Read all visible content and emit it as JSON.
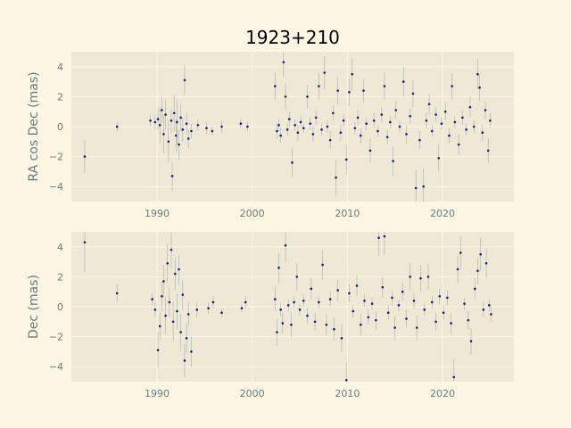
{
  "title": "1923+210",
  "chart_data": [
    {
      "type": "scatter",
      "ylabel": "RA cos Dec (mas)",
      "xlim": [
        1981.0,
        2027.5
      ],
      "ylim": [
        -5,
        5
      ],
      "xticks": [
        1990,
        2000,
        2010,
        2020
      ],
      "yticks": [
        -4,
        -2,
        0,
        2,
        4
      ],
      "grid": true,
      "error_bars": true,
      "series": [
        {
          "points": [
            [
              1982.4,
              -2.0,
              1.1
            ],
            [
              1985.8,
              0.0,
              0.3
            ],
            [
              1989.3,
              0.4,
              0.4
            ],
            [
              1989.8,
              0.3,
              0.5
            ],
            [
              1990.1,
              0.5,
              0.7
            ],
            [
              1990.3,
              0.1,
              1.2
            ],
            [
              1990.5,
              1.1,
              0.9
            ],
            [
              1990.7,
              -0.5,
              1.3
            ],
            [
              1990.9,
              0.8,
              1.0
            ],
            [
              1991.2,
              -1.0,
              1.4
            ],
            [
              1991.5,
              0.4,
              0.8
            ],
            [
              1991.6,
              -3.3,
              1.0
            ],
            [
              1991.8,
              0.9,
              1.2
            ],
            [
              1992.0,
              -0.6,
              1.1
            ],
            [
              1992.1,
              0.3,
              1.5
            ],
            [
              1992.3,
              -1.2,
              1.0
            ],
            [
              1992.5,
              0.6,
              0.9
            ],
            [
              1992.7,
              -0.2,
              0.8
            ],
            [
              1992.9,
              3.1,
              1.0
            ],
            [
              1993.1,
              0.2,
              0.7
            ],
            [
              1993.3,
              -0.8,
              0.6
            ],
            [
              1993.6,
              -0.3,
              0.5
            ],
            [
              1994.3,
              0.1,
              0.4
            ],
            [
              1995.2,
              -0.1,
              0.4
            ],
            [
              1995.8,
              -0.3,
              0.3
            ],
            [
              1996.8,
              0.0,
              0.4
            ],
            [
              1998.8,
              0.2,
              0.3
            ],
            [
              1999.5,
              0.0,
              0.3
            ],
            [
              2002.4,
              2.7,
              0.9
            ],
            [
              2002.6,
              -0.3,
              0.5
            ],
            [
              2002.8,
              0.1,
              0.4
            ],
            [
              2003.0,
              -0.6,
              0.5
            ],
            [
              2003.3,
              4.3,
              1.0
            ],
            [
              2003.5,
              2.0,
              0.9
            ],
            [
              2003.7,
              -0.2,
              0.4
            ],
            [
              2003.9,
              0.5,
              0.5
            ],
            [
              2004.2,
              -2.4,
              1.0
            ],
            [
              2004.5,
              0.1,
              0.4
            ],
            [
              2004.8,
              -0.4,
              0.5
            ],
            [
              2005.1,
              0.3,
              0.4
            ],
            [
              2005.4,
              -0.1,
              0.3
            ],
            [
              2005.8,
              2.0,
              0.8
            ],
            [
              2006.1,
              0.2,
              0.4
            ],
            [
              2006.4,
              -0.5,
              0.5
            ],
            [
              2006.7,
              0.6,
              0.5
            ],
            [
              2007.0,
              2.7,
              0.9
            ],
            [
              2007.3,
              -0.2,
              0.4
            ],
            [
              2007.6,
              3.6,
              1.1
            ],
            [
              2007.9,
              0.0,
              0.4
            ],
            [
              2008.2,
              -0.9,
              0.6
            ],
            [
              2008.5,
              0.9,
              0.5
            ],
            [
              2008.8,
              -3.4,
              1.2
            ],
            [
              2009.0,
              2.4,
              0.9
            ],
            [
              2009.3,
              -0.4,
              0.5
            ],
            [
              2009.6,
              0.4,
              0.4
            ],
            [
              2009.9,
              -2.2,
              1.0
            ],
            [
              2010.2,
              2.3,
              0.9
            ],
            [
              2010.5,
              3.5,
              1.1
            ],
            [
              2010.8,
              -0.1,
              0.4
            ],
            [
              2011.1,
              0.6,
              0.5
            ],
            [
              2011.4,
              -0.6,
              0.5
            ],
            [
              2011.7,
              2.4,
              0.8
            ],
            [
              2012.0,
              0.2,
              0.4
            ],
            [
              2012.4,
              -1.6,
              0.8
            ],
            [
              2012.8,
              0.4,
              0.5
            ],
            [
              2013.2,
              -0.3,
              0.4
            ],
            [
              2013.6,
              0.8,
              0.5
            ],
            [
              2013.9,
              2.7,
              0.9
            ],
            [
              2014.2,
              -0.7,
              0.5
            ],
            [
              2014.5,
              0.3,
              0.4
            ],
            [
              2014.8,
              -2.3,
              1.0
            ],
            [
              2015.1,
              1.1,
              0.6
            ],
            [
              2015.5,
              0.0,
              0.4
            ],
            [
              2015.9,
              3.0,
              1.0
            ],
            [
              2016.2,
              -0.5,
              0.6
            ],
            [
              2016.6,
              0.7,
              0.5
            ],
            [
              2016.9,
              2.2,
              0.9
            ],
            [
              2017.2,
              -4.1,
              1.2
            ],
            [
              2017.6,
              -0.9,
              0.6
            ],
            [
              2018.0,
              -4.0,
              1.2
            ],
            [
              2018.3,
              0.4,
              0.5
            ],
            [
              2018.6,
              1.5,
              0.7
            ],
            [
              2018.9,
              -0.3,
              0.4
            ],
            [
              2019.3,
              0.8,
              0.5
            ],
            [
              2019.6,
              -2.1,
              0.9
            ],
            [
              2019.9,
              0.2,
              0.4
            ],
            [
              2020.3,
              1.0,
              0.6
            ],
            [
              2020.7,
              -0.6,
              0.5
            ],
            [
              2021.0,
              2.7,
              0.9
            ],
            [
              2021.3,
              0.3,
              0.4
            ],
            [
              2021.7,
              -1.2,
              0.7
            ],
            [
              2022.1,
              0.6,
              0.5
            ],
            [
              2022.5,
              -0.2,
              0.4
            ],
            [
              2022.9,
              1.3,
              0.7
            ],
            [
              2023.3,
              0.0,
              0.4
            ],
            [
              2023.7,
              3.5,
              1.0
            ],
            [
              2023.9,
              2.6,
              0.9
            ],
            [
              2024.2,
              -0.4,
              0.5
            ],
            [
              2024.5,
              1.1,
              0.6
            ],
            [
              2024.8,
              -1.6,
              0.8
            ],
            [
              2025.0,
              0.4,
              0.5
            ]
          ]
        }
      ]
    },
    {
      "type": "scatter",
      "ylabel": "Dec (mas)",
      "xlim": [
        1981.0,
        2027.5
      ],
      "ylim": [
        -5,
        5
      ],
      "xticks": [
        1990,
        2000,
        2010,
        2020
      ],
      "yticks": [
        -4,
        -2,
        0,
        2,
        4
      ],
      "grid": true,
      "error_bars": true,
      "series": [
        {
          "points": [
            [
              1982.4,
              4.3,
              2.0
            ],
            [
              1985.8,
              0.9,
              0.6
            ],
            [
              1989.5,
              0.5,
              0.4
            ],
            [
              1989.8,
              -0.2,
              0.5
            ],
            [
              1990.1,
              -2.9,
              1.2
            ],
            [
              1990.3,
              -1.3,
              0.9
            ],
            [
              1990.5,
              0.7,
              1.0
            ],
            [
              1990.7,
              1.7,
              1.1
            ],
            [
              1990.9,
              -0.6,
              1.2
            ],
            [
              1991.1,
              2.9,
              1.3
            ],
            [
              1991.3,
              0.3,
              1.0
            ],
            [
              1991.5,
              3.8,
              1.2
            ],
            [
              1991.7,
              -1.0,
              1.3
            ],
            [
              1991.9,
              2.2,
              1.1
            ],
            [
              1992.1,
              -0.3,
              1.2
            ],
            [
              1992.3,
              2.5,
              1.0
            ],
            [
              1992.5,
              -1.7,
              1.2
            ],
            [
              1992.7,
              0.8,
              1.0
            ],
            [
              1992.9,
              -3.6,
              1.1
            ],
            [
              1993.1,
              -2.1,
              1.0
            ],
            [
              1993.3,
              -0.5,
              0.8
            ],
            [
              1993.6,
              -3.0,
              1.0
            ],
            [
              1994.2,
              -0.2,
              0.5
            ],
            [
              1995.4,
              -0.1,
              0.4
            ],
            [
              1995.9,
              0.3,
              0.4
            ],
            [
              1996.8,
              -0.4,
              0.3
            ],
            [
              1998.9,
              -0.1,
              0.3
            ],
            [
              1999.3,
              0.3,
              0.4
            ],
            [
              2002.4,
              0.5,
              0.8
            ],
            [
              2002.6,
              -1.7,
              0.9
            ],
            [
              2002.8,
              2.6,
              1.0
            ],
            [
              2003.0,
              -0.2,
              0.4
            ],
            [
              2003.2,
              -1.1,
              0.7
            ],
            [
              2003.5,
              4.1,
              1.1
            ],
            [
              2003.8,
              0.1,
              0.4
            ],
            [
              2004.1,
              -1.2,
              0.8
            ],
            [
              2004.4,
              0.3,
              0.4
            ],
            [
              2004.7,
              2.0,
              0.9
            ],
            [
              2005.0,
              -0.2,
              0.4
            ],
            [
              2005.4,
              0.4,
              0.4
            ],
            [
              2005.8,
              -0.6,
              0.5
            ],
            [
              2006.2,
              1.2,
              0.7
            ],
            [
              2006.6,
              -1.0,
              0.6
            ],
            [
              2007.0,
              0.3,
              0.4
            ],
            [
              2007.4,
              2.8,
              1.0
            ],
            [
              2007.8,
              -1.2,
              0.7
            ],
            [
              2008.2,
              0.5,
              0.5
            ],
            [
              2008.6,
              -1.5,
              0.8
            ],
            [
              2009.0,
              1.1,
              0.7
            ],
            [
              2009.4,
              -2.1,
              0.9
            ],
            [
              2009.9,
              -4.9,
              1.2
            ],
            [
              2010.2,
              0.9,
              0.6
            ],
            [
              2010.6,
              -0.3,
              0.4
            ],
            [
              2011.0,
              1.4,
              0.7
            ],
            [
              2011.4,
              -1.2,
              0.7
            ],
            [
              2011.8,
              0.4,
              0.4
            ],
            [
              2012.2,
              -0.7,
              0.5
            ],
            [
              2012.6,
              0.2,
              0.4
            ],
            [
              2013.0,
              -0.9,
              0.6
            ],
            [
              2013.3,
              4.6,
              1.2
            ],
            [
              2013.7,
              1.3,
              0.7
            ],
            [
              2013.9,
              4.7,
              1.2
            ],
            [
              2014.3,
              -0.4,
              0.5
            ],
            [
              2014.7,
              0.6,
              0.5
            ],
            [
              2015.0,
              -1.4,
              0.8
            ],
            [
              2015.4,
              0.1,
              0.4
            ],
            [
              2015.8,
              1.0,
              0.6
            ],
            [
              2016.2,
              -0.8,
              0.6
            ],
            [
              2016.6,
              2.0,
              0.9
            ],
            [
              2017.0,
              0.4,
              0.5
            ],
            [
              2017.3,
              -1.4,
              0.8
            ],
            [
              2017.7,
              1.9,
              0.9
            ],
            [
              2018.1,
              -0.2,
              0.4
            ],
            [
              2018.5,
              2.0,
              0.9
            ],
            [
              2018.9,
              0.3,
              0.4
            ],
            [
              2019.3,
              -1.0,
              0.6
            ],
            [
              2019.7,
              0.7,
              0.5
            ],
            [
              2020.1,
              -0.4,
              0.5
            ],
            [
              2020.5,
              0.6,
              0.5
            ],
            [
              2020.9,
              -1.1,
              0.7
            ],
            [
              2021.2,
              -4.7,
              1.2
            ],
            [
              2021.6,
              2.5,
              0.9
            ],
            [
              2021.9,
              3.6,
              1.1
            ],
            [
              2022.3,
              0.2,
              0.4
            ],
            [
              2022.7,
              -0.9,
              0.6
            ],
            [
              2023.0,
              -2.3,
              0.9
            ],
            [
              2023.4,
              1.2,
              0.7
            ],
            [
              2023.7,
              2.4,
              0.9
            ],
            [
              2024.0,
              3.5,
              1.1
            ],
            [
              2024.3,
              -0.2,
              0.5
            ],
            [
              2024.6,
              2.9,
              1.0
            ],
            [
              2024.9,
              0.1,
              0.4
            ],
            [
              2025.1,
              -0.5,
              0.5
            ]
          ]
        }
      ]
    }
  ]
}
